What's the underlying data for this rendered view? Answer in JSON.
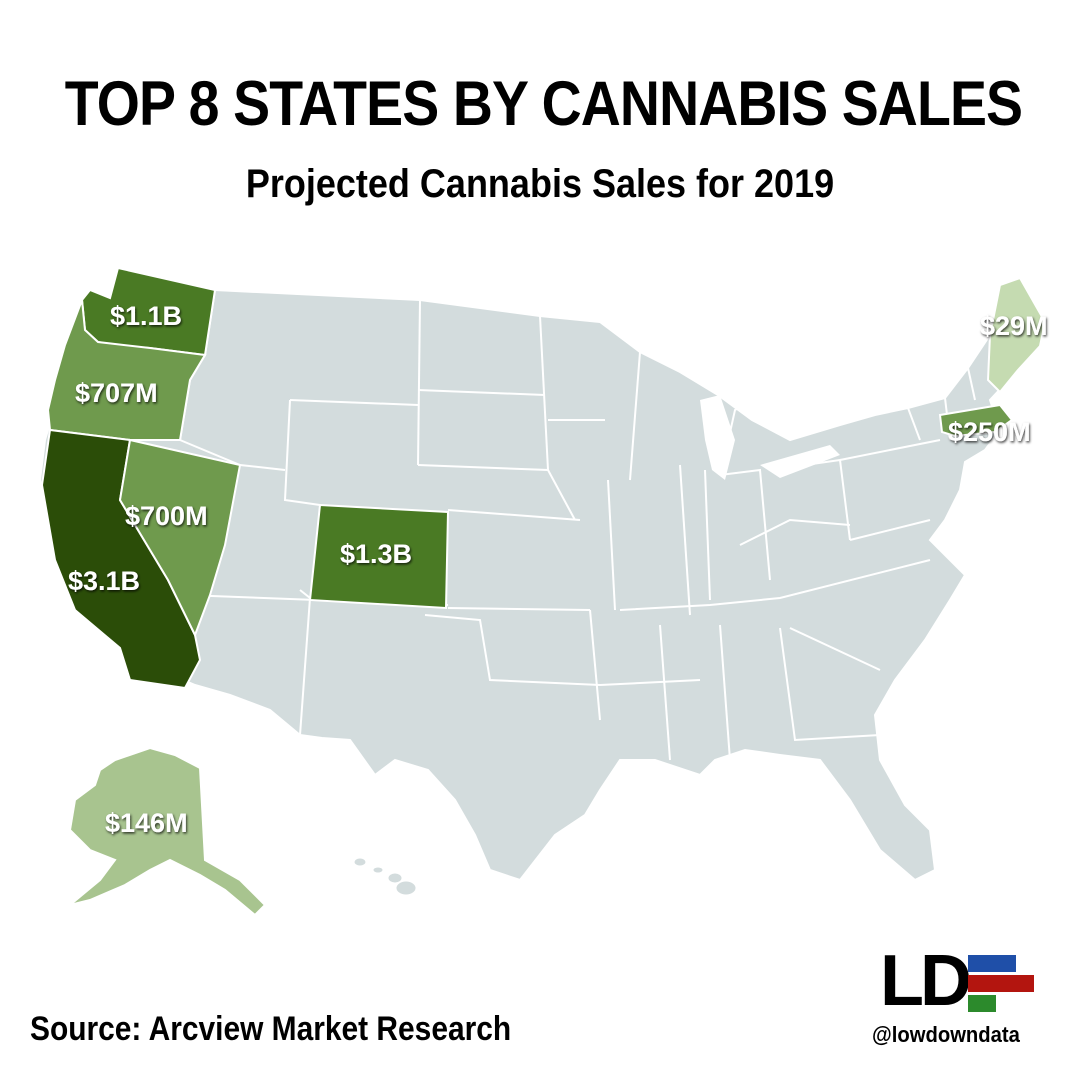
{
  "header": {
    "title": "TOP 8 STATES BY CANNABIS SALES",
    "subtitle": "Projected Cannabis Sales for 2019"
  },
  "colors": {
    "background_state": "#d3dcdd",
    "state_border": "#ffffff",
    "tier_darkest": "#2b4d08",
    "tier_dark": "#4a7a24",
    "tier_mid": "#6f9a4d",
    "tier_light": "#a8c48f",
    "tier_lightest": "#c5dbb1",
    "label_text": "#ffffff",
    "logo_blue": "#1f4fa8",
    "logo_red": "#b3150f",
    "logo_green": "#2c8a2c"
  },
  "chart_data": {
    "type": "choropleth",
    "title": "TOP 8 STATES BY CANNABIS SALES",
    "subtitle": "Projected Cannabis Sales for 2019",
    "unit": "USD",
    "states": [
      {
        "state": "California",
        "label": "$3.1B",
        "value": 3100000000
      },
      {
        "state": "Colorado",
        "label": "$1.3B",
        "value": 1300000000
      },
      {
        "state": "Washington",
        "label": "$1.1B",
        "value": 1100000000
      },
      {
        "state": "Oregon",
        "label": "$707M",
        "value": 707000000
      },
      {
        "state": "Nevada",
        "label": "$700M",
        "value": 700000000
      },
      {
        "state": "Massachusetts",
        "label": "$250M",
        "value": 250000000
      },
      {
        "state": "Alaska",
        "label": "$146M",
        "value": 146000000
      },
      {
        "state": "Maine",
        "label": "$29M",
        "value": 29000000
      }
    ]
  },
  "footer": {
    "source": "Source: Arcview Market Research",
    "logo_text": "LD",
    "handle": "@lowdowndata"
  }
}
